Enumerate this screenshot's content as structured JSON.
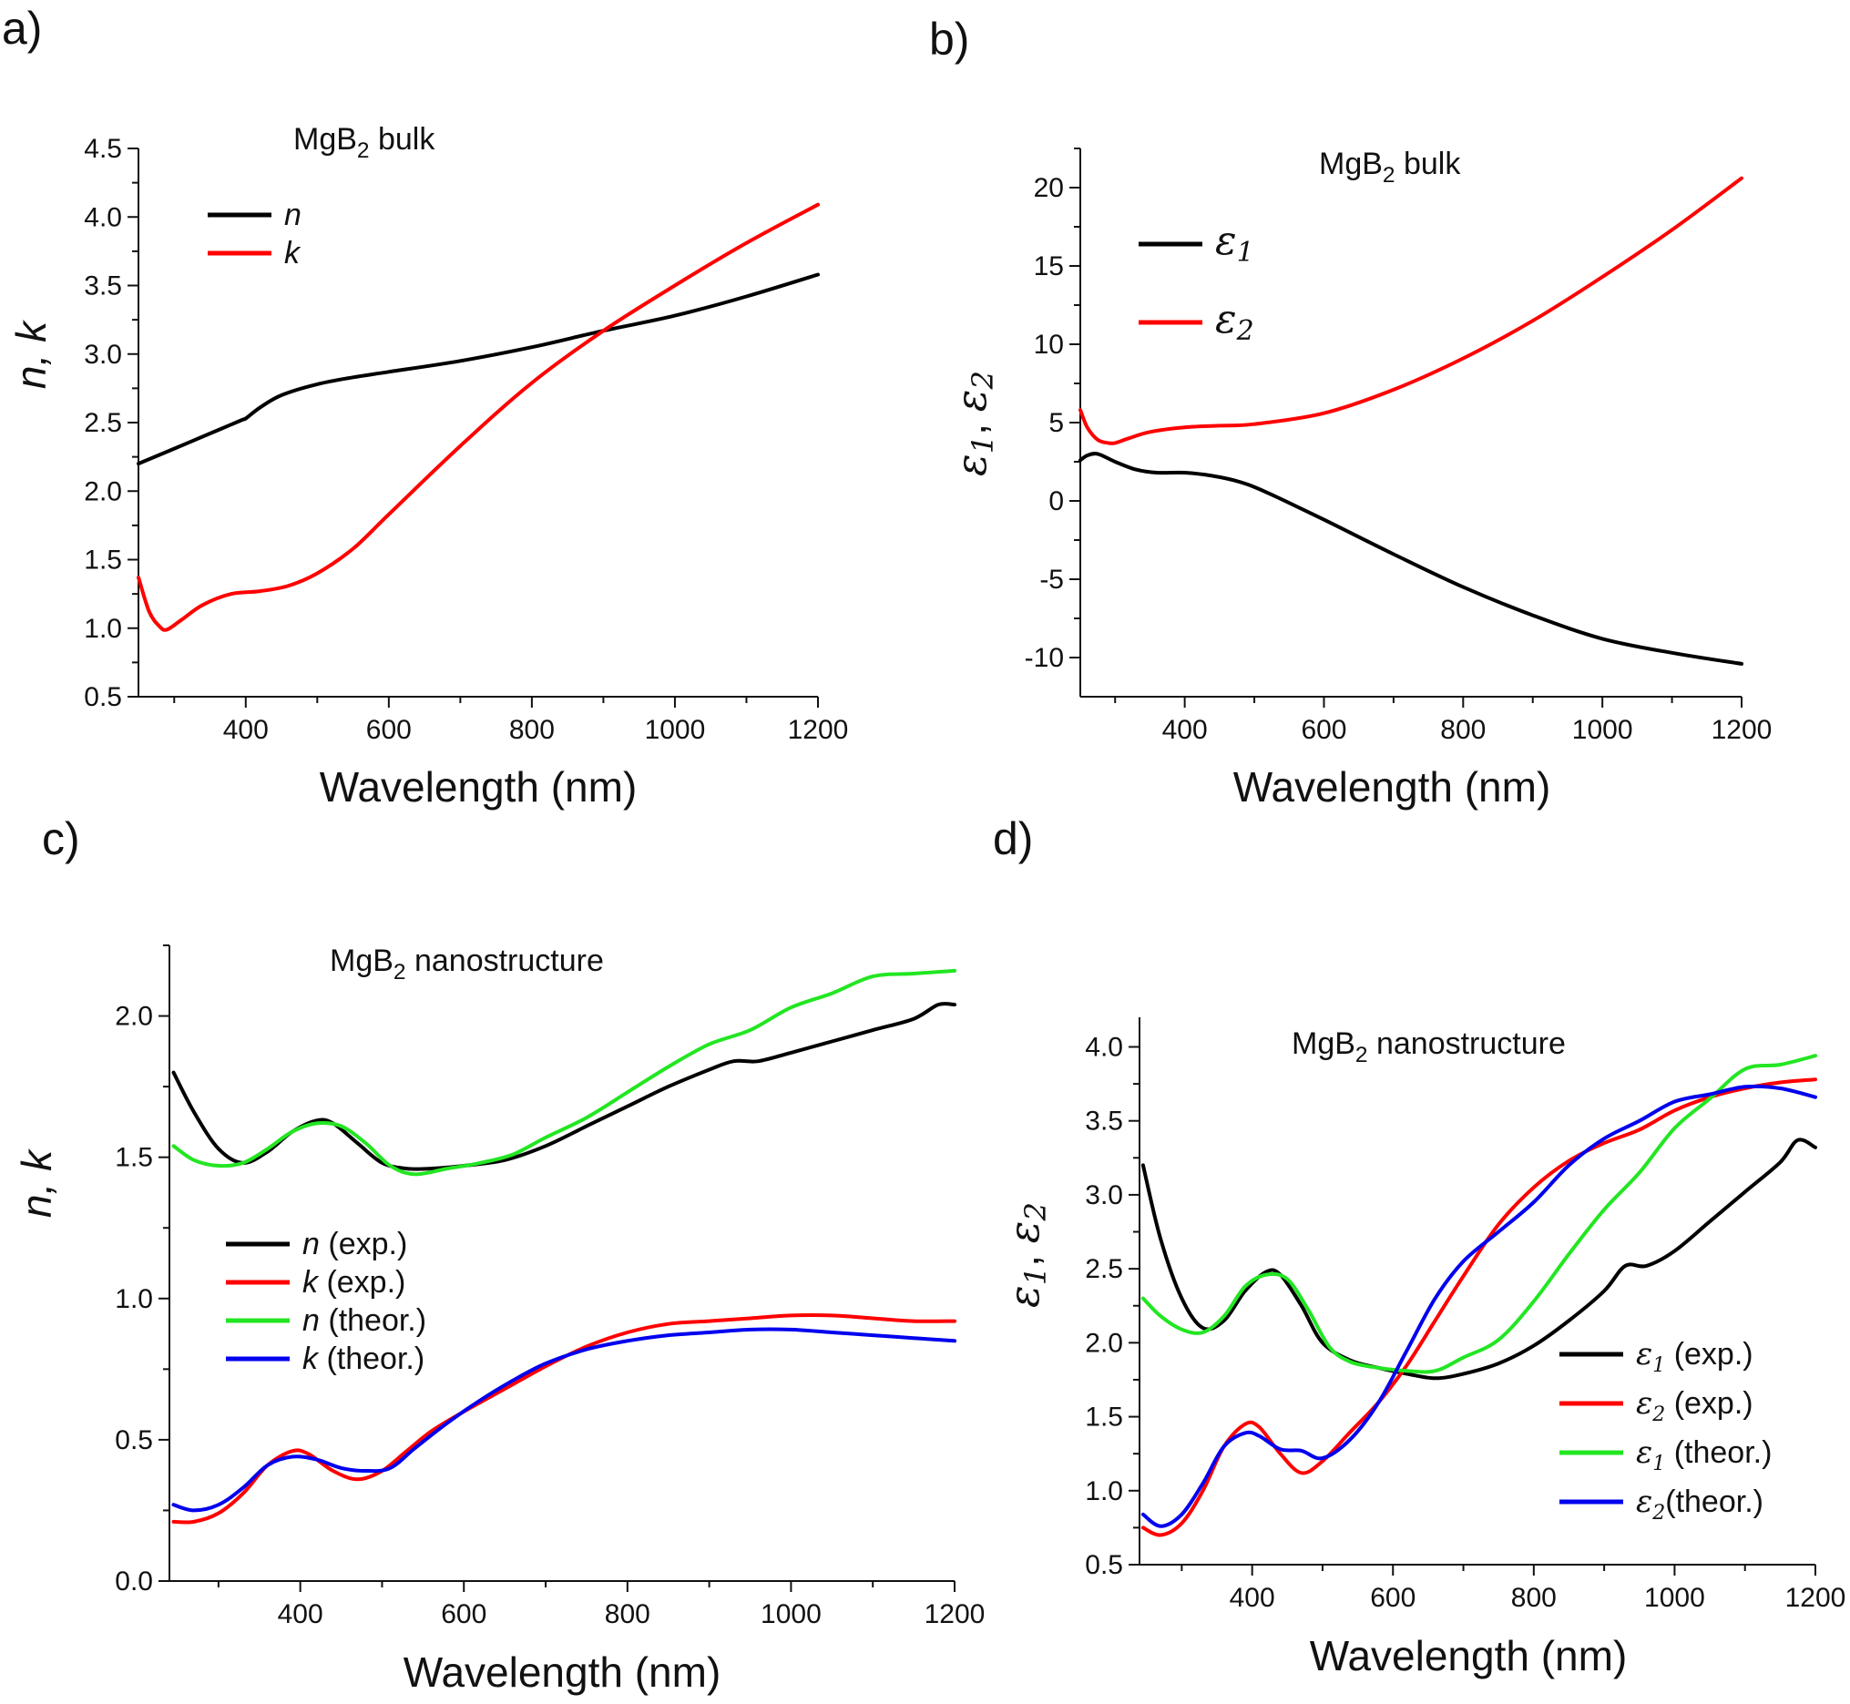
{
  "chart_data": [
    {
      "panel": "a)",
      "type": "line",
      "title": "MgB₂ bulk",
      "xlabel": "Wavelength (nm)",
      "ylabel": "n, k",
      "xlim": [
        250,
        1200
      ],
      "ylim": [
        0.5,
        4.5
      ],
      "xticks": [
        400,
        600,
        800,
        1000,
        1200
      ],
      "yticks": [
        0.5,
        1.0,
        1.5,
        2.0,
        2.5,
        3.0,
        3.5,
        4.0,
        4.5
      ],
      "ytick_decimals": 1,
      "legend_position": "top-left",
      "series": [
        {
          "name": "n",
          "label_style": "italic",
          "color": "#000000",
          "x": [
            250,
            300,
            350,
            395,
            400,
            420,
            450,
            500,
            550,
            600,
            700,
            800,
            900,
            1000,
            1100,
            1200
          ],
          "y": [
            2.2,
            2.31,
            2.42,
            2.52,
            2.53,
            2.61,
            2.7,
            2.78,
            2.83,
            2.87,
            2.95,
            3.05,
            3.17,
            3.28,
            3.42,
            3.58
          ]
        },
        {
          "name": "k",
          "label_style": "italic",
          "color": "#ff0000",
          "x": [
            250,
            265,
            280,
            290,
            310,
            340,
            380,
            420,
            460,
            500,
            550,
            600,
            700,
            800,
            900,
            1000,
            1100,
            1200
          ],
          "y": [
            1.37,
            1.12,
            1.01,
            0.99,
            1.06,
            1.17,
            1.25,
            1.27,
            1.31,
            1.4,
            1.58,
            1.83,
            2.33,
            2.79,
            3.17,
            3.5,
            3.81,
            4.09
          ]
        }
      ]
    },
    {
      "panel": "b)",
      "type": "line",
      "title": "MgB₂ bulk",
      "xlabel": "Wavelength (nm)",
      "ylabel": "ε1, ε2",
      "xlim": [
        250,
        1200
      ],
      "ylim": [
        -12.5,
        22.5
      ],
      "xticks": [
        400,
        600,
        800,
        1000,
        1200
      ],
      "yticks": [
        -10,
        -5,
        0,
        5,
        10,
        15,
        20
      ],
      "ytick_decimals": 0,
      "legend_position": "top-left",
      "series": [
        {
          "name": "ε1",
          "subscript": "1",
          "color": "#000000",
          "x": [
            250,
            260,
            275,
            300,
            330,
            360,
            400,
            440,
            480,
            520,
            600,
            700,
            800,
            900,
            1000,
            1100,
            1200
          ],
          "y": [
            2.6,
            2.9,
            3.0,
            2.5,
            2.0,
            1.8,
            1.8,
            1.6,
            1.2,
            0.5,
            -1.2,
            -3.4,
            -5.5,
            -7.3,
            -8.8,
            -9.7,
            -10.4
          ]
        },
        {
          "name": "ε2",
          "subscript": "2",
          "color": "#ff0000",
          "x": [
            250,
            260,
            275,
            290,
            300,
            320,
            350,
            400,
            450,
            500,
            600,
            700,
            800,
            900,
            1000,
            1100,
            1200
          ],
          "y": [
            5.8,
            4.7,
            3.9,
            3.7,
            3.7,
            4.0,
            4.4,
            4.7,
            4.8,
            4.9,
            5.6,
            7.1,
            9.1,
            11.5,
            14.3,
            17.3,
            20.6
          ]
        }
      ]
    },
    {
      "panel": "c)",
      "type": "line",
      "title": "MgB₂ nanostructure",
      "xlabel": "Wavelength (nm)",
      "ylabel": "n, k",
      "xlim": [
        240,
        1200
      ],
      "ylim": [
        0.0,
        2.25
      ],
      "xticks": [
        400,
        600,
        800,
        1000,
        1200
      ],
      "yticks": [
        0.0,
        0.5,
        1.0,
        1.5,
        2.0
      ],
      "ytick_decimals": 1,
      "legend_position": "center-left",
      "series": [
        {
          "name": "n",
          "suffix": " (exp.)",
          "color": "#000000",
          "x": [
            245,
            270,
            300,
            330,
            360,
            390,
            420,
            440,
            470,
            500,
            530,
            560,
            600,
            650,
            700,
            750,
            800,
            850,
            900,
            930,
            960,
            1000,
            1050,
            1100,
            1150,
            1180,
            1200
          ],
          "y": [
            1.8,
            1.66,
            1.53,
            1.48,
            1.52,
            1.59,
            1.63,
            1.62,
            1.55,
            1.48,
            1.46,
            1.46,
            1.47,
            1.49,
            1.54,
            1.61,
            1.68,
            1.75,
            1.81,
            1.84,
            1.84,
            1.87,
            1.91,
            1.95,
            1.99,
            2.04,
            2.04
          ]
        },
        {
          "name": "k",
          "suffix": " (exp.)",
          "color": "#ff0000",
          "x": [
            245,
            270,
            300,
            330,
            360,
            390,
            410,
            440,
            470,
            500,
            530,
            560,
            600,
            650,
            700,
            750,
            800,
            850,
            900,
            950,
            1000,
            1050,
            1100,
            1150,
            1200
          ],
          "y": [
            0.21,
            0.21,
            0.24,
            0.31,
            0.41,
            0.46,
            0.45,
            0.39,
            0.36,
            0.39,
            0.46,
            0.53,
            0.6,
            0.68,
            0.76,
            0.83,
            0.88,
            0.91,
            0.92,
            0.93,
            0.94,
            0.94,
            0.93,
            0.92,
            0.92
          ]
        },
        {
          "name": "n",
          "suffix": " (theor.)",
          "color": "#22e622",
          "x": [
            245,
            270,
            300,
            330,
            360,
            390,
            420,
            450,
            480,
            510,
            540,
            580,
            620,
            660,
            700,
            750,
            800,
            850,
            900,
            950,
            1000,
            1050,
            1100,
            1150,
            1200
          ],
          "y": [
            1.54,
            1.49,
            1.47,
            1.48,
            1.53,
            1.59,
            1.62,
            1.61,
            1.55,
            1.47,
            1.44,
            1.46,
            1.48,
            1.51,
            1.57,
            1.64,
            1.73,
            1.82,
            1.9,
            1.95,
            2.03,
            2.08,
            2.14,
            2.15,
            2.16
          ]
        },
        {
          "name": "k",
          "suffix": " (theor.)",
          "color": "#0000ee",
          "x": [
            245,
            270,
            300,
            330,
            360,
            390,
            420,
            450,
            480,
            510,
            540,
            580,
            620,
            660,
            700,
            750,
            800,
            850,
            900,
            950,
            1000,
            1050,
            1100,
            1150,
            1200
          ],
          "y": [
            0.27,
            0.25,
            0.27,
            0.33,
            0.41,
            0.44,
            0.43,
            0.4,
            0.39,
            0.4,
            0.47,
            0.56,
            0.64,
            0.71,
            0.77,
            0.82,
            0.85,
            0.87,
            0.88,
            0.89,
            0.89,
            0.88,
            0.87,
            0.86,
            0.85
          ]
        }
      ]
    },
    {
      "panel": "d)",
      "type": "line",
      "title": "MgB₂ nanostructure",
      "xlabel": "Wavelength (nm)",
      "ylabel": "ε1, ε2",
      "xlim": [
        240,
        1200
      ],
      "ylim": [
        0.5,
        4.2
      ],
      "xticks": [
        400,
        600,
        800,
        1000,
        1200
      ],
      "yticks": [
        0.5,
        1.0,
        1.5,
        2.0,
        2.5,
        3.0,
        3.5,
        4.0
      ],
      "ytick_decimals": 1,
      "legend_position": "bottom-right",
      "series": [
        {
          "name": "ε1",
          "subscript": "1",
          "suffix": " (exp.)",
          "color": "#000000",
          "x": [
            245,
            270,
            300,
            330,
            360,
            390,
            420,
            440,
            470,
            500,
            540,
            580,
            620,
            660,
            700,
            750,
            800,
            850,
            900,
            930,
            960,
            1000,
            1050,
            1100,
            1150,
            1175,
            1200
          ],
          "y": [
            3.2,
            2.7,
            2.3,
            2.1,
            2.15,
            2.35,
            2.48,
            2.46,
            2.25,
            2.0,
            1.88,
            1.83,
            1.79,
            1.76,
            1.79,
            1.86,
            1.98,
            2.15,
            2.35,
            2.52,
            2.52,
            2.62,
            2.82,
            3.02,
            3.22,
            3.37,
            3.32
          ]
        },
        {
          "name": "ε2",
          "subscript": "2",
          "suffix": " (exp.)",
          "color": "#ff0000",
          "x": [
            245,
            270,
            300,
            330,
            360,
            390,
            410,
            440,
            470,
            500,
            540,
            580,
            620,
            660,
            700,
            750,
            800,
            850,
            900,
            950,
            1000,
            1050,
            1100,
            1150,
            1200
          ],
          "y": [
            0.75,
            0.7,
            0.78,
            1.0,
            1.3,
            1.45,
            1.43,
            1.25,
            1.12,
            1.2,
            1.4,
            1.6,
            1.85,
            2.15,
            2.45,
            2.8,
            3.05,
            3.23,
            3.35,
            3.44,
            3.57,
            3.66,
            3.72,
            3.76,
            3.78
          ]
        },
        {
          "name": "ε1",
          "subscript": "1",
          "suffix": " (theor.)",
          "color": "#22e622",
          "x": [
            245,
            270,
            300,
            330,
            360,
            390,
            420,
            450,
            480,
            510,
            540,
            580,
            620,
            660,
            700,
            750,
            800,
            850,
            900,
            950,
            1000,
            1050,
            1100,
            1150,
            1200
          ],
          "y": [
            2.3,
            2.18,
            2.09,
            2.07,
            2.18,
            2.38,
            2.46,
            2.43,
            2.22,
            1.97,
            1.87,
            1.83,
            1.81,
            1.81,
            1.9,
            2.02,
            2.28,
            2.6,
            2.9,
            3.15,
            3.45,
            3.65,
            3.85,
            3.88,
            3.94
          ]
        },
        {
          "name": "ε2",
          "subscript": "2",
          "suffix": "(theor.)",
          "color": "#0000ee",
          "x": [
            245,
            270,
            300,
            330,
            360,
            390,
            410,
            440,
            470,
            500,
            540,
            580,
            620,
            660,
            700,
            750,
            800,
            850,
            900,
            950,
            1000,
            1050,
            1100,
            1150,
            1200
          ],
          "y": [
            0.84,
            0.76,
            0.84,
            1.05,
            1.3,
            1.39,
            1.37,
            1.28,
            1.27,
            1.22,
            1.35,
            1.6,
            1.95,
            2.3,
            2.55,
            2.75,
            2.95,
            3.2,
            3.38,
            3.5,
            3.63,
            3.68,
            3.73,
            3.72,
            3.66
          ]
        }
      ]
    }
  ]
}
